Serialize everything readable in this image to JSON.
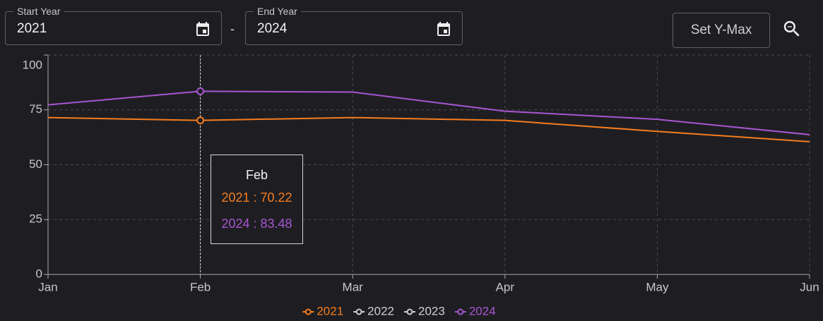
{
  "controls": {
    "start_year": {
      "label": "Start Year",
      "value": "2021"
    },
    "separator": "-",
    "end_year": {
      "label": "End Year",
      "value": "2024"
    },
    "set_ymax": "Set Y-Max"
  },
  "chart_data": {
    "type": "line",
    "categories": [
      "Jan",
      "Feb",
      "Mar",
      "Apr",
      "May",
      "Jun"
    ],
    "series": [
      {
        "name": "2021",
        "color": "#f57c1f",
        "values": [
          71.5,
          70.22,
          71.5,
          70.2,
          65.2,
          60.5
        ]
      },
      {
        "name": "2022",
        "color": "#cfcfcf",
        "values": [
          null,
          null,
          null,
          null,
          null,
          null
        ]
      },
      {
        "name": "2023",
        "color": "#cfcfcf",
        "values": [
          null,
          null,
          null,
          null,
          null,
          null
        ]
      },
      {
        "name": "2024",
        "color": "#a855d2",
        "values": [
          77.3,
          83.48,
          83.1,
          74.4,
          70.7,
          63.7
        ]
      }
    ],
    "ylim": [
      0,
      100
    ],
    "yticks": [
      0,
      25,
      50,
      75,
      100
    ],
    "grid": true,
    "legend": "bottom",
    "tooltip": {
      "title": "Feb",
      "lines": [
        "2021 : 70.22",
        "2024 : 83.48"
      ]
    }
  }
}
